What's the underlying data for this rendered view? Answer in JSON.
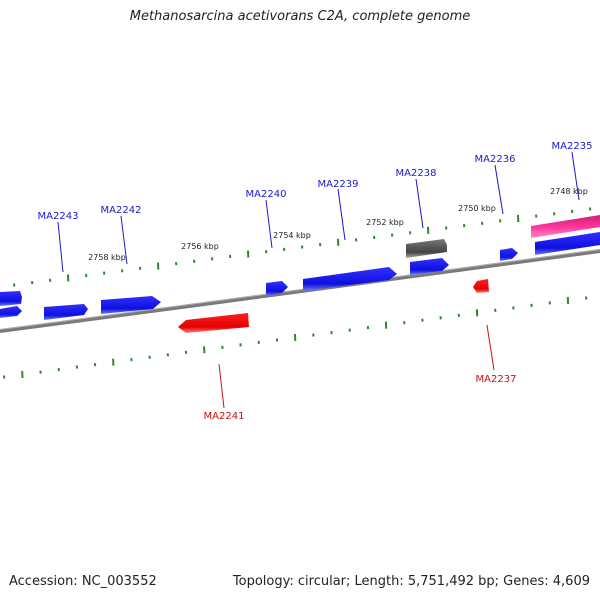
{
  "title": "Methanosarcina acetivorans C2A, complete genome",
  "footer": {
    "accession": "Accession: NC_003552",
    "summary": "Topology: circular; Length: 5,751,492 bp; Genes: 4,609"
  },
  "ticks": [
    {
      "label": "2758 kbp"
    },
    {
      "label": "2756 kbp"
    },
    {
      "label": "2754 kbp"
    },
    {
      "label": "2752 kbp"
    },
    {
      "label": "2750 kbp"
    },
    {
      "label": "2748 kbp"
    }
  ],
  "genes_top": [
    {
      "label": "MA2243"
    },
    {
      "label": "MA2242"
    },
    {
      "label": "MA2240"
    },
    {
      "label": "MA2239"
    },
    {
      "label": "MA2238"
    },
    {
      "label": "MA2236"
    },
    {
      "label": "MA2235"
    }
  ],
  "genes_bottom": [
    {
      "label": "MA2241"
    },
    {
      "label": "MA2237"
    }
  ],
  "colors": {
    "forward_gene": "#1a1aee",
    "reverse_gene": "#ee1111",
    "pseudo_gene": "#555555",
    "rna_gene": "#e8409a",
    "backbone": "#808080",
    "ticks": "#2a8a2a",
    "top_label": "#1a1acc",
    "bottom_label": "#cc1111"
  }
}
